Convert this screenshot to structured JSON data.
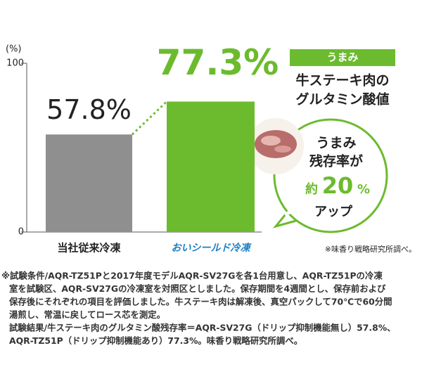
{
  "chart_data": {
    "type": "bar",
    "y_label": "(%)",
    "categories": [
      "当社従来冷凍",
      "おいシールド冷凍"
    ],
    "values": [
      57.8,
      77.3
    ],
    "value_labels": [
      "57.8%",
      "77.3%"
    ],
    "colors": [
      "#8f8f8f",
      "#6cbb2e"
    ],
    "ylim": [
      0,
      100
    ],
    "yticks": [
      0,
      100
    ],
    "badge": "うまみ",
    "title_lines": [
      "牛ステーキ肉の",
      "グルタミン酸値"
    ],
    "bubble": {
      "line1": "うまみ",
      "line2": "残存率が",
      "prefix": "約",
      "number": "20",
      "unit": "%",
      "line4": "アップ"
    },
    "source": "※味香り戦略研究所調べ。",
    "footnote": [
      "※試験条件/AQR-TZ51Pと2017年度モデルAQR-SV27Gを各1台用意し、AQR-TZ51Pの冷凍",
      "室を試験区、AQR-SV27Gの冷凍室を対照区としました。保存期間を4週間とし、保存前および",
      "保存後にそれぞれの項目を評価しました。牛ステーキ肉は解凍後、真空パックして70℃で60分間",
      "湯煎し、常温に戻してロース芯を測定。",
      "試験結果/牛ステーキ肉のグルタミン酸残存率＝AQR-SV27G（ドリップ抑制機能無し）57.8%、",
      "AQR-TZ51P（ドリップ抑制機能あり）77.3%。味香り戦略研究所調べ。"
    ]
  }
}
